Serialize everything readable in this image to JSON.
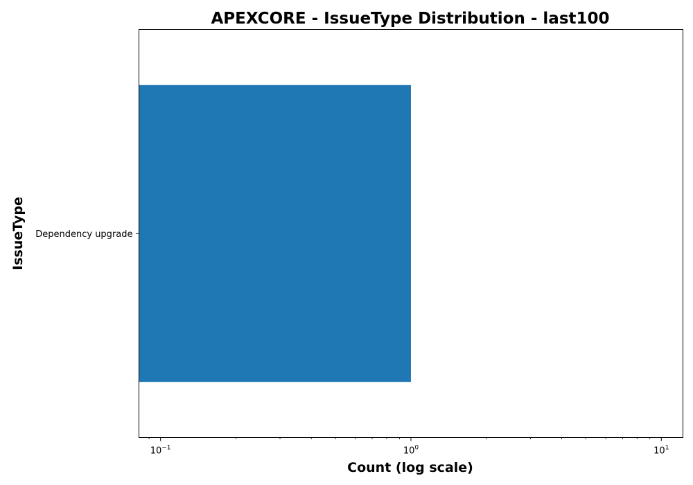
{
  "chart_data": {
    "type": "bar",
    "orientation": "horizontal",
    "title": "APEXCORE - IssueType Distribution - last100",
    "xlabel": "Count (log scale)",
    "ylabel": "IssueType",
    "x_scale": "log",
    "xlim": [
      0.082,
      12.2
    ],
    "x_major_ticks": [
      0.1,
      1,
      10
    ],
    "x_tick_labels": [
      {
        "base": "10",
        "exp": "−1"
      },
      {
        "base": "10",
        "exp": "0"
      },
      {
        "base": "10",
        "exp": "1"
      }
    ],
    "categories": [
      "Dependency upgrade"
    ],
    "values": [
      1
    ],
    "bar_color": "#1f77b4",
    "grid": false,
    "legend": "none"
  }
}
